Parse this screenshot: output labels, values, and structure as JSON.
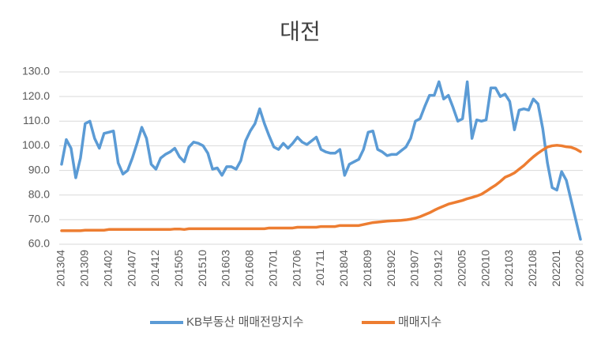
{
  "chart_data": {
    "type": "line",
    "title": "대전",
    "categories": [
      "201304",
      null,
      null,
      null,
      null,
      "201309",
      null,
      null,
      null,
      null,
      "201402",
      null,
      null,
      null,
      null,
      "201407",
      null,
      null,
      null,
      null,
      "201412",
      null,
      null,
      null,
      null,
      "201505",
      null,
      null,
      null,
      null,
      "201510",
      null,
      null,
      null,
      null,
      "201603",
      null,
      null,
      null,
      null,
      "201608",
      null,
      null,
      null,
      null,
      "201701",
      null,
      null,
      null,
      null,
      "201706",
      null,
      null,
      null,
      null,
      "201711",
      null,
      null,
      null,
      null,
      "201804",
      null,
      null,
      null,
      null,
      "201809",
      null,
      null,
      null,
      null,
      "201902",
      null,
      null,
      null,
      null,
      "201907",
      null,
      null,
      null,
      null,
      "201912",
      null,
      null,
      null,
      null,
      "202005",
      null,
      null,
      null,
      null,
      "202010",
      null,
      null,
      null,
      null,
      "202103",
      null,
      null,
      null,
      null,
      "202108",
      null,
      null,
      null,
      null,
      "202201",
      null,
      null,
      null,
      null,
      "202206"
    ],
    "series": [
      {
        "name": "KB부동산 매매전망지수",
        "color": "#5b9bd5",
        "values": [
          92.5,
          102.5,
          99,
          87,
          95,
          109,
          110,
          103,
          99,
          105,
          105.5,
          106,
          93,
          88.5,
          90,
          95,
          101,
          107.5,
          103,
          92.5,
          90.5,
          95,
          96.5,
          97.5,
          99,
          95.5,
          93.5,
          99.5,
          101.5,
          101,
          100,
          97,
          90.5,
          91,
          88,
          91.5,
          91.5,
          90.5,
          94,
          102,
          106,
          109,
          115,
          109,
          104,
          99.5,
          98.5,
          101,
          99,
          101,
          103.5,
          101.5,
          100.5,
          102,
          103.5,
          98.5,
          97.5,
          97,
          97,
          98.5,
          88,
          92.5,
          93.5,
          94.5,
          98.5,
          105.5,
          106,
          98.5,
          97.5,
          96,
          96.5,
          96.5,
          98,
          99.5,
          103,
          110,
          111,
          116,
          120.5,
          120.5,
          126,
          119,
          120.5,
          115.5,
          110,
          111,
          126,
          103,
          110.5,
          110,
          110.5,
          123.5,
          123.5,
          120,
          121,
          118,
          106.5,
          114.5,
          115,
          114.5,
          119,
          117,
          107,
          93,
          83,
          82,
          89.5,
          86,
          78,
          70,
          62
        ]
      },
      {
        "name": "매매지수",
        "color": "#ed7d31",
        "values": [
          65.5,
          65.5,
          65.5,
          65.5,
          65.5,
          65.7,
          65.7,
          65.7,
          65.7,
          65.7,
          66,
          66,
          66,
          66,
          66,
          66,
          66,
          66,
          66,
          66,
          66,
          66,
          66,
          66,
          66.2,
          66.2,
          66,
          66.3,
          66.3,
          66.3,
          66.3,
          66.3,
          66.3,
          66.3,
          66.3,
          66.3,
          66.3,
          66.3,
          66.3,
          66.3,
          66.3,
          66.3,
          66.3,
          66.3,
          66.6,
          66.6,
          66.6,
          66.6,
          66.6,
          66.6,
          66.9,
          66.9,
          66.9,
          66.9,
          66.9,
          67.2,
          67.2,
          67.2,
          67.2,
          67.6,
          67.6,
          67.6,
          67.6,
          67.6,
          68.0,
          68.4,
          68.8,
          69.0,
          69.2,
          69.4,
          69.5,
          69.6,
          69.7,
          69.9,
          70.2,
          70.6,
          71.2,
          72.0,
          72.8,
          73.8,
          74.7,
          75.5,
          76.3,
          76.8,
          77.3,
          77.8,
          78.5,
          79.0,
          79.6,
          80.3,
          81.5,
          82.8,
          84.0,
          85.5,
          87.2,
          88.0,
          89.0,
          90.5,
          92.0,
          93.8,
          95.5,
          97.0,
          98.3,
          99.5,
          100.0,
          100.2,
          100.0,
          99.6,
          99.4,
          98.7,
          97.6
        ]
      }
    ],
    "ylim": [
      60,
      130
    ],
    "yticks": [
      {
        "value": 60,
        "label": "60.0"
      },
      {
        "value": 70,
        "label": "70.0"
      },
      {
        "value": 80,
        "label": "80.0"
      },
      {
        "value": 90,
        "label": "90.0"
      },
      {
        "value": 100,
        "label": "100.0"
      },
      {
        "value": 110,
        "label": "110.0"
      },
      {
        "value": 120,
        "label": "120.0"
      },
      {
        "value": 130,
        "label": "130.0"
      }
    ],
    "grid": true,
    "legend": "bottom"
  }
}
